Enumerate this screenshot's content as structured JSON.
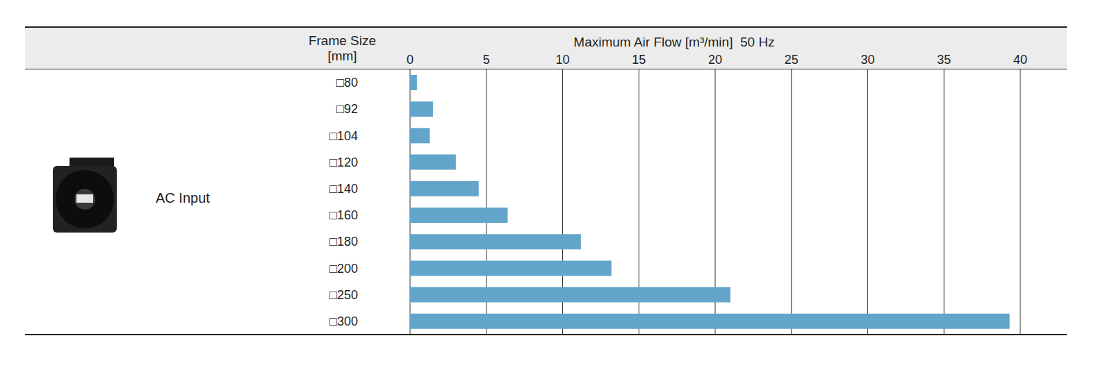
{
  "chart_data": {
    "type": "bar",
    "orientation": "horizontal",
    "x_label": "Maximum Air Flow [m³/min]  50 Hz",
    "y_label": "Frame Size [mm]",
    "annotations": [
      "AC Input"
    ],
    "categories": [
      "□80",
      "□92",
      "□104",
      "□120",
      "□140",
      "□160",
      "□180",
      "□200",
      "□250",
      "□300"
    ],
    "values": [
      0.45,
      1.5,
      1.3,
      3.0,
      4.5,
      6.4,
      11.2,
      13.2,
      21.0,
      39.3
    ],
    "color": "#63a5ca",
    "xlim": [
      0,
      40
    ],
    "xticks": [
      0,
      5,
      10,
      15,
      20,
      25,
      30,
      35,
      40
    ],
    "grid": true
  }
}
